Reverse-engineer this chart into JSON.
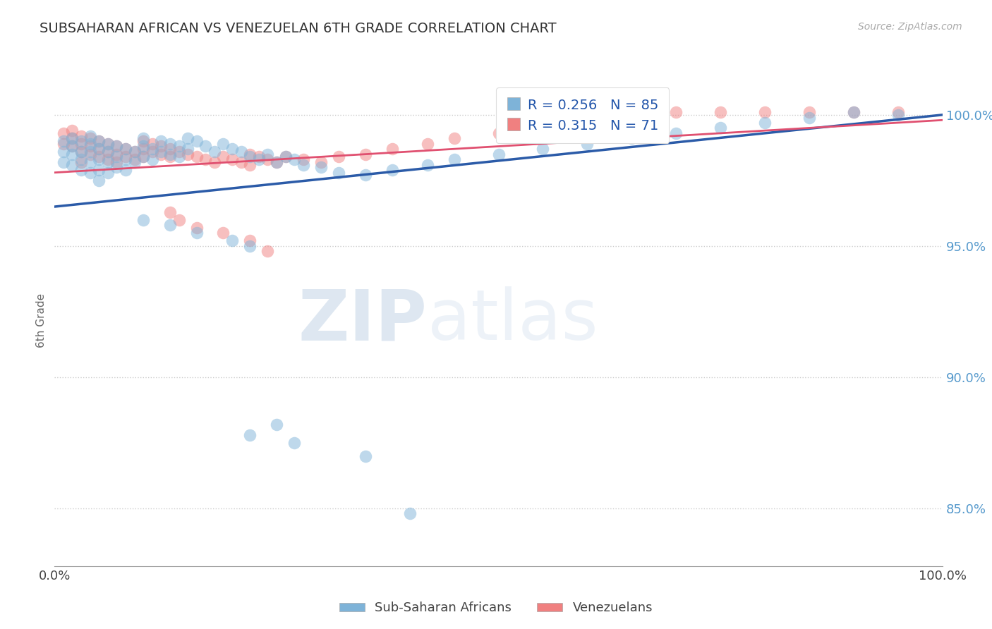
{
  "title": "SUBSAHARAN AFRICAN VS VENEZUELAN 6TH GRADE CORRELATION CHART",
  "source_text": "Source: ZipAtlas.com",
  "ylabel": "6th Grade",
  "yaxis_labels": [
    "85.0%",
    "90.0%",
    "95.0%",
    "100.0%"
  ],
  "yaxis_values": [
    0.85,
    0.9,
    0.95,
    1.0
  ],
  "xlim": [
    0.0,
    1.0
  ],
  "ylim": [
    0.828,
    1.015
  ],
  "blue_R": 0.256,
  "blue_N": 85,
  "pink_R": 0.315,
  "pink_N": 71,
  "blue_label": "Sub-Saharan Africans",
  "pink_label": "Venezuelans",
  "blue_color": "#7EB3D8",
  "pink_color": "#F08080",
  "blue_line_color": "#2B5BA8",
  "pink_line_color": "#E05070",
  "watermark_zip": "ZIP",
  "watermark_atlas": "atlas",
  "blue_line_x": [
    0.0,
    1.0
  ],
  "blue_line_y": [
    0.965,
    1.0
  ],
  "pink_line_x": [
    0.0,
    1.0
  ],
  "pink_line_y": [
    0.978,
    0.998
  ],
  "blue_scatter_x": [
    0.01,
    0.01,
    0.01,
    0.02,
    0.02,
    0.02,
    0.02,
    0.03,
    0.03,
    0.03,
    0.03,
    0.04,
    0.04,
    0.04,
    0.04,
    0.04,
    0.05,
    0.05,
    0.05,
    0.05,
    0.05,
    0.06,
    0.06,
    0.06,
    0.06,
    0.07,
    0.07,
    0.07,
    0.08,
    0.08,
    0.08,
    0.09,
    0.09,
    0.1,
    0.1,
    0.1,
    0.11,
    0.11,
    0.12,
    0.12,
    0.13,
    0.13,
    0.14,
    0.14,
    0.15,
    0.15,
    0.16,
    0.17,
    0.18,
    0.19,
    0.2,
    0.21,
    0.22,
    0.23,
    0.24,
    0.25,
    0.26,
    0.27,
    0.28,
    0.3,
    0.32,
    0.35,
    0.38,
    0.42,
    0.45,
    0.5,
    0.55,
    0.6,
    0.65,
    0.7,
    0.75,
    0.8,
    0.85,
    0.9,
    0.95,
    0.1,
    0.13,
    0.16,
    0.2,
    0.22,
    0.22,
    0.25,
    0.27,
    0.35,
    0.4
  ],
  "blue_scatter_y": [
    0.99,
    0.986,
    0.982,
    0.991,
    0.988,
    0.985,
    0.981,
    0.99,
    0.986,
    0.983,
    0.979,
    0.992,
    0.989,
    0.986,
    0.982,
    0.978,
    0.99,
    0.987,
    0.983,
    0.979,
    0.975,
    0.989,
    0.986,
    0.982,
    0.978,
    0.988,
    0.984,
    0.98,
    0.987,
    0.983,
    0.979,
    0.986,
    0.982,
    0.991,
    0.988,
    0.984,
    0.987,
    0.983,
    0.99,
    0.986,
    0.989,
    0.985,
    0.988,
    0.984,
    0.991,
    0.987,
    0.99,
    0.988,
    0.986,
    0.989,
    0.987,
    0.986,
    0.984,
    0.983,
    0.985,
    0.982,
    0.984,
    0.983,
    0.981,
    0.98,
    0.978,
    0.977,
    0.979,
    0.981,
    0.983,
    0.985,
    0.987,
    0.989,
    0.991,
    0.993,
    0.995,
    0.997,
    0.999,
    1.001,
    1.0,
    0.96,
    0.958,
    0.955,
    0.952,
    0.95,
    0.878,
    0.882,
    0.875,
    0.87,
    0.848
  ],
  "pink_scatter_x": [
    0.01,
    0.01,
    0.02,
    0.02,
    0.02,
    0.03,
    0.03,
    0.03,
    0.03,
    0.04,
    0.04,
    0.04,
    0.05,
    0.05,
    0.05,
    0.06,
    0.06,
    0.06,
    0.07,
    0.07,
    0.07,
    0.08,
    0.08,
    0.09,
    0.09,
    0.1,
    0.1,
    0.1,
    0.11,
    0.11,
    0.12,
    0.12,
    0.13,
    0.13,
    0.14,
    0.15,
    0.16,
    0.17,
    0.18,
    0.19,
    0.2,
    0.21,
    0.22,
    0.22,
    0.23,
    0.24,
    0.25,
    0.26,
    0.28,
    0.3,
    0.32,
    0.35,
    0.38,
    0.42,
    0.45,
    0.5,
    0.55,
    0.6,
    0.65,
    0.7,
    0.75,
    0.8,
    0.85,
    0.9,
    0.95,
    0.13,
    0.14,
    0.16,
    0.19,
    0.22,
    0.24
  ],
  "pink_scatter_y": [
    0.993,
    0.989,
    0.994,
    0.991,
    0.988,
    0.992,
    0.989,
    0.986,
    0.982,
    0.991,
    0.988,
    0.985,
    0.99,
    0.987,
    0.984,
    0.989,
    0.986,
    0.983,
    0.988,
    0.985,
    0.982,
    0.987,
    0.984,
    0.986,
    0.983,
    0.99,
    0.987,
    0.984,
    0.989,
    0.986,
    0.988,
    0.985,
    0.987,
    0.984,
    0.986,
    0.985,
    0.984,
    0.983,
    0.982,
    0.984,
    0.983,
    0.982,
    0.985,
    0.981,
    0.984,
    0.983,
    0.982,
    0.984,
    0.983,
    0.982,
    0.984,
    0.985,
    0.987,
    0.989,
    0.991,
    0.993,
    0.995,
    0.997,
    0.999,
    1.001,
    1.001,
    1.001,
    1.001,
    1.001,
    1.001,
    0.963,
    0.96,
    0.957,
    0.955,
    0.952,
    0.948
  ]
}
